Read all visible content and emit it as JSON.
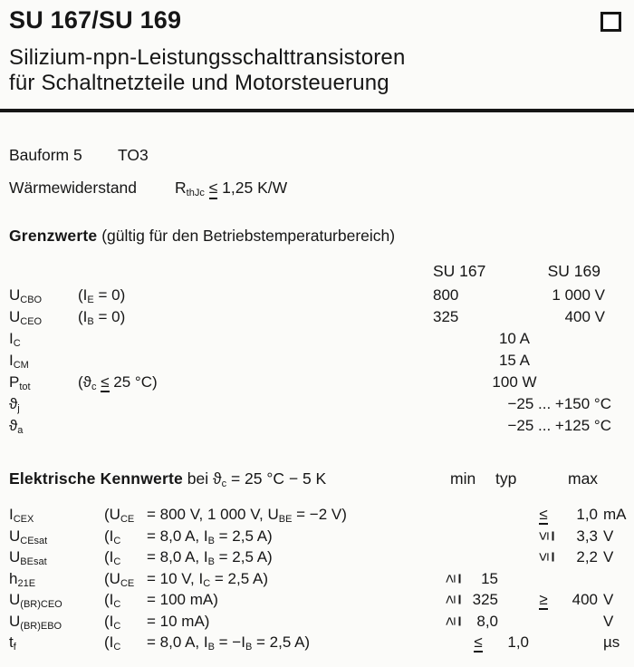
{
  "colors": {
    "ink": "#161616",
    "paper": "#fbfbf9"
  },
  "header": {
    "title": "SU 167/SU 169",
    "subtitle_line1": "Silizium-npn-Leistungsschalttransistoren",
    "subtitle_line2": "für Schaltnetzteile und Motorsteuerung",
    "corner_icon": "square-outline"
  },
  "info": {
    "bauform": "Bauform 5",
    "package": "TO3",
    "thermal_label": "Wärmewiderstand",
    "thermal_value": "R_{thJc} ≦ 1,25 K/W"
  },
  "grenzwerte": {
    "heading": "Grenzwerte",
    "heading_note": "(gültig für den Betriebstemperaturbereich)",
    "col_su167": "SU 167",
    "col_su169": "SU 169",
    "rows": [
      {
        "sym": "U_{CBO}",
        "cond": "(I_{E} = 0)",
        "v167": "800",
        "v169": "1 000 V"
      },
      {
        "sym": "U_{CEO}",
        "cond": "(I_{B} = 0)",
        "v167": "325",
        "v169": "400 V"
      },
      {
        "sym": "I_{C}",
        "cond": "",
        "shared": "10 A",
        "shared_align": "center"
      },
      {
        "sym": "I_{CM}",
        "cond": "",
        "shared": "15 A",
        "shared_align": "center"
      },
      {
        "sym": "P_{tot}",
        "cond": "(ϑ_{c} ≦ 25 °C)",
        "shared": "100 W",
        "shared_align": "center"
      },
      {
        "sym": "ϑ_{j}",
        "cond": "",
        "shared": "−25 ... +150 °C",
        "shared_align": "right"
      },
      {
        "sym": "ϑ_{a}",
        "cond": "",
        "shared": "−25 ... +125 °C",
        "shared_align": "right"
      }
    ]
  },
  "kennwerte": {
    "heading": "Elektrische Kennwerte",
    "heading_note": "bei ϑ_{c} = 25 °C − 5 K",
    "col_min": "min",
    "col_typ": "typ",
    "col_max": "max",
    "rows": [
      {
        "sym": "I_{CEX}",
        "cond_open": "(U_{CE}",
        "cond_rest": "= 800 V, 1 000 V, U_{BE} = −2 V)",
        "max_sign": "≦",
        "max_rot": false,
        "max": "1,0",
        "unit": "mA"
      },
      {
        "sym": "U_{CEsat}",
        "cond_open": "(I_{C}",
        "cond_rest": "= 8,0 A, I_{B} = 2,5 A)",
        "max_sign": "≦",
        "max_rot": true,
        "max": "3,3",
        "unit": "V"
      },
      {
        "sym": "U_{BEsat}",
        "cond_open": "(I_{C}",
        "cond_rest": "= 8,0 A, I_{B} = 2,5 A)",
        "max_sign": "≦",
        "max_rot": true,
        "max": "2,2",
        "unit": "V"
      },
      {
        "sym": "h_{21E}",
        "cond_open": "(U_{CE}",
        "cond_rest": "= 10 V, I_{C} = 2,5 A)",
        "min_sign": "≧",
        "min_rot": true,
        "min": "15",
        "unit": ""
      },
      {
        "sym": "U_{(BR)CEO}",
        "cond_open": "(I_{C}",
        "cond_rest": "= 100 mA)",
        "min_sign": "≧",
        "min_rot": true,
        "min": "325",
        "max_sign": "≧",
        "max_rot": false,
        "max": "400",
        "unit": "V"
      },
      {
        "sym": "U_{(BR)EBO}",
        "cond_open": "(I_{C}",
        "cond_rest": "= 10 mA)",
        "min_sign": "≧",
        "min_rot": true,
        "min": "8,0",
        "unit": "V"
      },
      {
        "sym": "t_{f}",
        "cond_open": "(I_{C}",
        "cond_rest": "= 8,0 A, I_{B} = −I_{B} = 2,5 A)",
        "mid_sign": "≦",
        "mid_rot": false,
        "mid": "1,0",
        "unit": "µs"
      }
    ]
  }
}
